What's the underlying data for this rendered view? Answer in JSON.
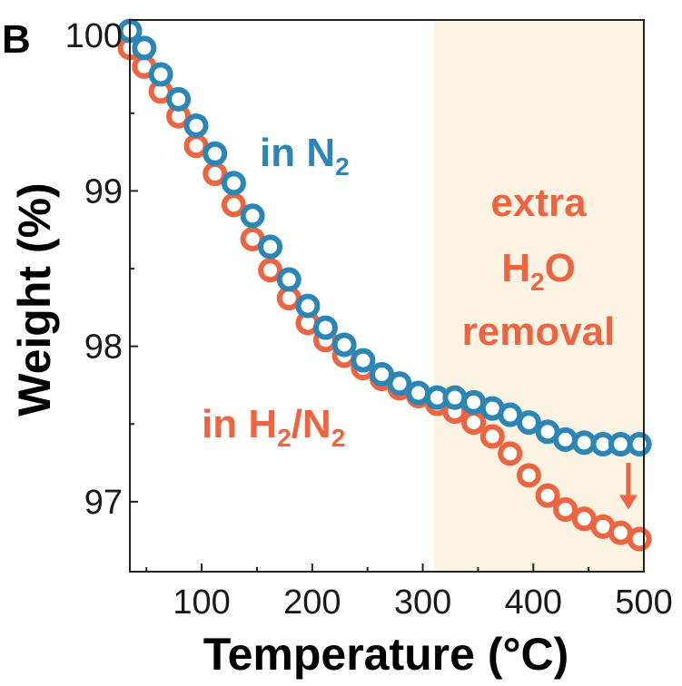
{
  "chart_data": {
    "type": "scatter",
    "panel_label": "B",
    "xlabel": "Temperature (°C)",
    "ylabel": "Weight (%)",
    "xlim": [
      35,
      500
    ],
    "ylim": [
      96.55,
      100.1
    ],
    "xticks": [
      100,
      200,
      300,
      400,
      500
    ],
    "yticks": [
      97,
      98,
      99,
      100
    ],
    "ytick_labels": [
      "97",
      "98",
      "99",
      "100"
    ],
    "xtick_labels": [
      "100",
      "200",
      "300",
      "400",
      "500"
    ],
    "highlight_region": {
      "x_range": [
        310,
        500
      ],
      "color": "#fdf3e2"
    },
    "colors": {
      "n2": "#2b86b5",
      "h2n2": "#ec6540",
      "arrow": "#ec6540"
    },
    "series": [
      {
        "name": "in N2",
        "color": "#2b86b5",
        "x": [
          35,
          48,
          63,
          79,
          95,
          112,
          129,
          146,
          162,
          179,
          196,
          212,
          229,
          246,
          263,
          279,
          296,
          313,
          329,
          346,
          363,
          379,
          396,
          413,
          429,
          446,
          463,
          479,
          496
        ],
        "y": [
          100.03,
          99.92,
          99.75,
          99.59,
          99.42,
          99.24,
          99.05,
          98.84,
          98.64,
          98.43,
          98.26,
          98.12,
          98.01,
          97.91,
          97.82,
          97.76,
          97.7,
          97.67,
          97.67,
          97.64,
          97.6,
          97.56,
          97.51,
          97.45,
          97.4,
          97.38,
          97.37,
          97.37,
          97.37
        ]
      },
      {
        "name": "in H2/N2",
        "color": "#ec6540",
        "x": [
          35,
          48,
          63,
          79,
          95,
          112,
          129,
          146,
          162,
          179,
          196,
          212,
          229,
          246,
          263,
          279,
          296,
          313,
          329,
          346,
          363,
          379,
          396,
          413,
          429,
          446,
          463,
          479,
          496
        ],
        "y": [
          99.92,
          99.8,
          99.64,
          99.48,
          99.29,
          99.11,
          98.91,
          98.69,
          98.49,
          98.31,
          98.15,
          98.04,
          97.94,
          97.86,
          97.79,
          97.73,
          97.68,
          97.63,
          97.58,
          97.51,
          97.42,
          97.31,
          97.17,
          97.04,
          96.95,
          96.89,
          96.84,
          96.8,
          96.76
        ]
      }
    ],
    "annotations": {
      "n2_label": {
        "prefix": "in N",
        "sub": "2",
        "suffix": ""
      },
      "h2n2_label": {
        "prefix": "in H",
        "sub1": "2",
        "mid": "/N",
        "sub2": "2"
      },
      "extra_line1": "extra",
      "extra_line2_prefix": "H",
      "extra_line2_sub": "2",
      "extra_line2_suffix": "O",
      "extra_line3": "removal"
    }
  }
}
